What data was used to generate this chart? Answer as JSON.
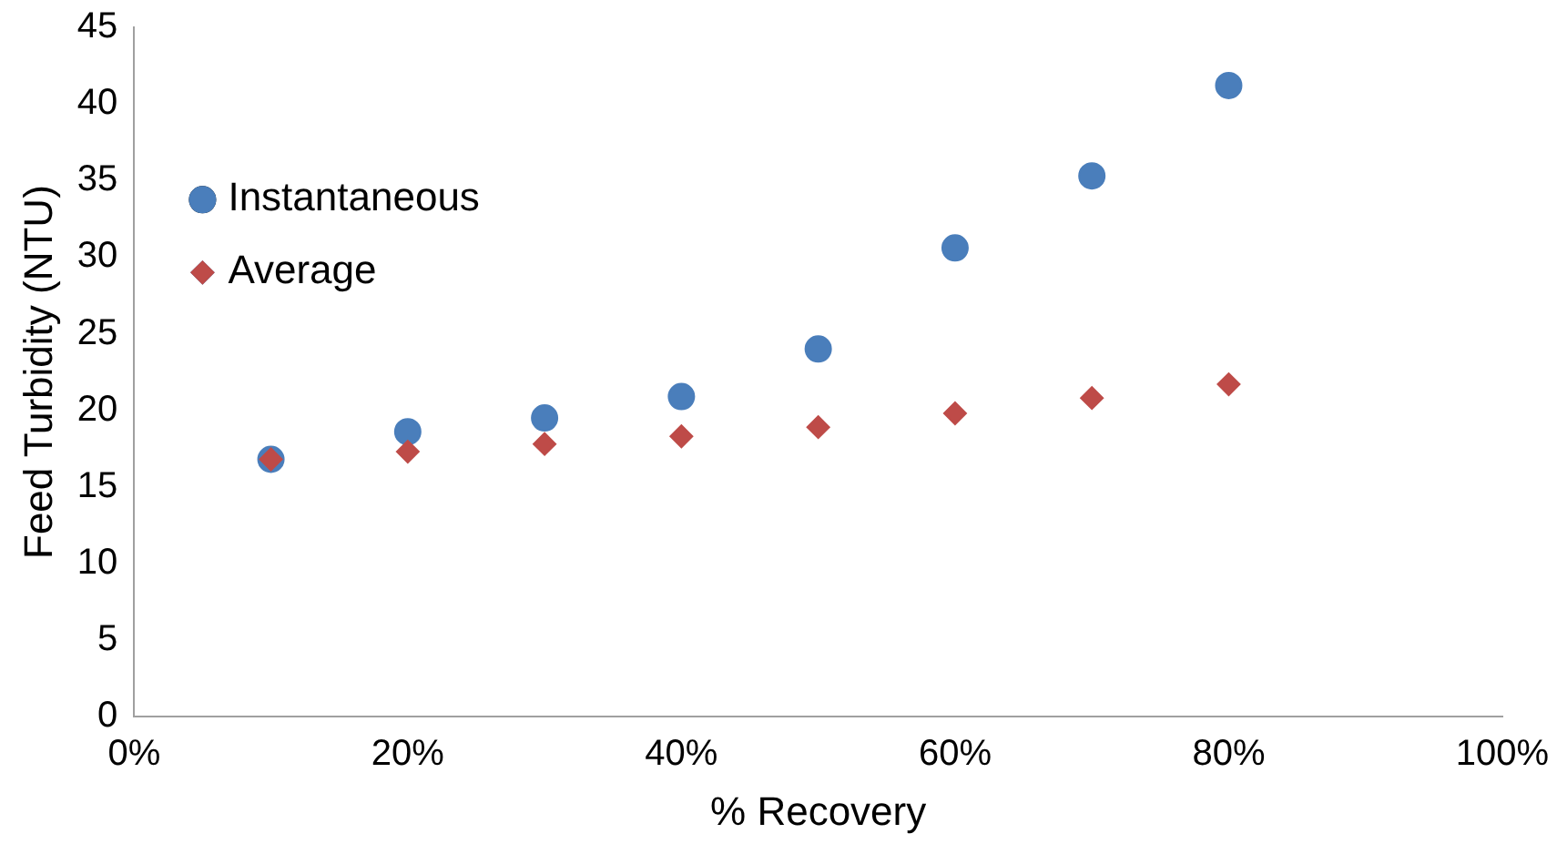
{
  "chart_data": {
    "type": "scatter",
    "xlabel": "% Recovery",
    "ylabel": "Feed Turbidity (NTU)",
    "xlim": [
      0,
      1
    ],
    "xticks": [
      {
        "value": 0,
        "label": "0%"
      },
      {
        "value": 0.2,
        "label": "20%"
      },
      {
        "value": 0.4,
        "label": "40%"
      },
      {
        "value": 0.6,
        "label": "60%"
      },
      {
        "value": 0.8,
        "label": "80%"
      },
      {
        "value": 1,
        "label": "100%"
      }
    ],
    "ylim": [
      0,
      45
    ],
    "yticks": [
      0,
      5,
      10,
      15,
      20,
      25,
      30,
      35,
      40,
      45
    ],
    "grid": false,
    "legend": "top left",
    "x": [
      0.1,
      0.2,
      0.3,
      0.4,
      0.5,
      0.6,
      0.7,
      0.8
    ],
    "series": [
      {
        "name": "Instantaneous",
        "color": "#4a7ebb",
        "marker": "circle",
        "values": [
          16.8,
          18.6,
          19.5,
          20.9,
          24.0,
          30.6,
          35.3,
          41.2
        ]
      },
      {
        "name": "Average",
        "color": "#be4b48",
        "marker": "diamond",
        "values": [
          16.8,
          17.3,
          17.8,
          18.3,
          18.9,
          19.8,
          20.8,
          21.7
        ]
      }
    ]
  }
}
